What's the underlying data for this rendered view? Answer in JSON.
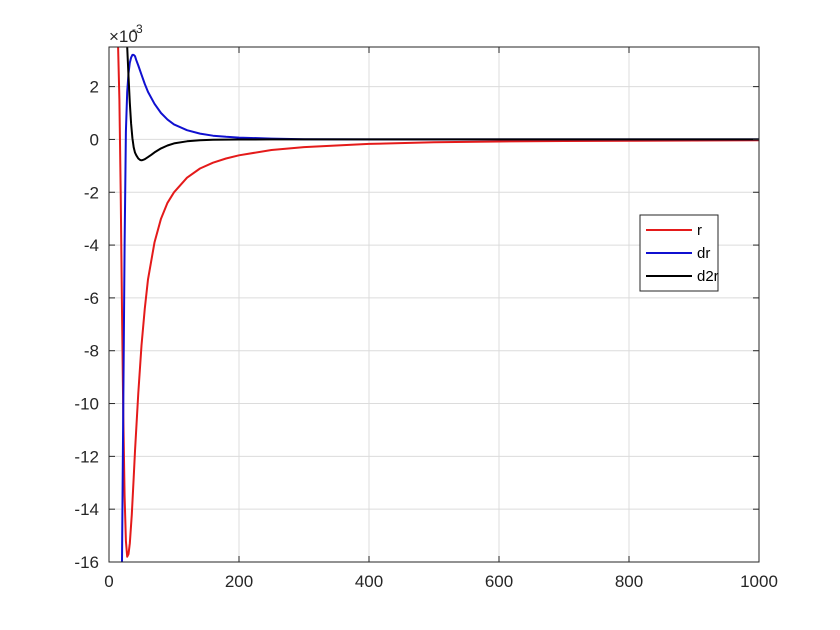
{
  "chart_data": {
    "type": "line",
    "title": "",
    "xlabel": "",
    "ylabel": "",
    "xlim": [
      0,
      1000
    ],
    "ylim": [
      -0.016,
      0.0035
    ],
    "y_exponent_label": "×10",
    "y_exponent_power": "-3",
    "grid": true,
    "legend_position": "right",
    "x_ticks": [
      "0",
      "200",
      "400",
      "600",
      "800",
      "1000"
    ],
    "x_tick_values": [
      0,
      200,
      400,
      600,
      800,
      1000
    ],
    "y_ticks": [
      "-16",
      "-14",
      "-12",
      "-10",
      "-8",
      "-6",
      "-4",
      "-2",
      "0",
      "2"
    ],
    "y_tick_values": [
      -0.016,
      -0.014,
      -0.012,
      -0.01,
      -0.008,
      -0.006,
      -0.004,
      -0.002,
      0,
      0.002
    ],
    "series": [
      {
        "name": "r",
        "color": "#e41a1a",
        "x": [
          14,
          16,
          18,
          20,
          22,
          24,
          26,
          28,
          30,
          32,
          35,
          38,
          40,
          45,
          50,
          55,
          60,
          70,
          80,
          90,
          100,
          120,
          140,
          160,
          180,
          200,
          250,
          300,
          400,
          500,
          600,
          700,
          800,
          900,
          1000
        ],
        "y": [
          0.0035,
          0.0015,
          -0.002,
          -0.0065,
          -0.0105,
          -0.0135,
          -0.0152,
          -0.0158,
          -0.0157,
          -0.0153,
          -0.0142,
          -0.0128,
          -0.0118,
          -0.0096,
          -0.0078,
          -0.0064,
          -0.0053,
          -0.0039,
          -0.003,
          -0.0024,
          -0.002,
          -0.00145,
          -0.0011,
          -0.00088,
          -0.00072,
          -0.0006,
          -0.0004,
          -0.00029,
          -0.00017,
          -0.00011,
          -8e-05,
          -6e-05,
          -5e-05,
          -4e-05,
          -3e-05
        ]
      },
      {
        "name": "dr",
        "color": "#1010d0",
        "x": [
          20,
          22,
          24,
          26,
          28,
          30,
          32,
          34,
          36,
          38,
          40,
          42,
          45,
          50,
          55,
          60,
          70,
          80,
          90,
          100,
          120,
          140,
          160,
          180,
          200,
          250,
          300,
          400,
          1000
        ],
        "y": [
          -0.016,
          -0.01,
          -0.004,
          0.0003,
          0.0018,
          0.0025,
          0.0029,
          0.0031,
          0.0032,
          0.0032,
          0.00315,
          0.003,
          0.0028,
          0.00245,
          0.0021,
          0.0018,
          0.00135,
          0.001,
          0.00075,
          0.00057,
          0.00035,
          0.00022,
          0.00014,
          0.0001,
          7e-05,
          3e-05,
          1e-05,
          2e-06,
          0
        ]
      },
      {
        "name": "d2r",
        "color": "#000000",
        "x": [
          28,
          30,
          32,
          34,
          36,
          38,
          40,
          42,
          45,
          48,
          50,
          52,
          55,
          60,
          65,
          70,
          80,
          90,
          100,
          120,
          140,
          160,
          200,
          250,
          300,
          1000
        ],
        "y": [
          0.0035,
          0.0024,
          0.0014,
          0.0006,
          5e-05,
          -0.0003,
          -0.0005,
          -0.0006,
          -0.00072,
          -0.00078,
          -0.00079,
          -0.00078,
          -0.00075,
          -0.00067,
          -0.00058,
          -0.00049,
          -0.00034,
          -0.00023,
          -0.00015,
          -7e-05,
          -3e-05,
          -1e-05,
          -2e-06,
          0,
          0,
          0
        ]
      }
    ]
  }
}
